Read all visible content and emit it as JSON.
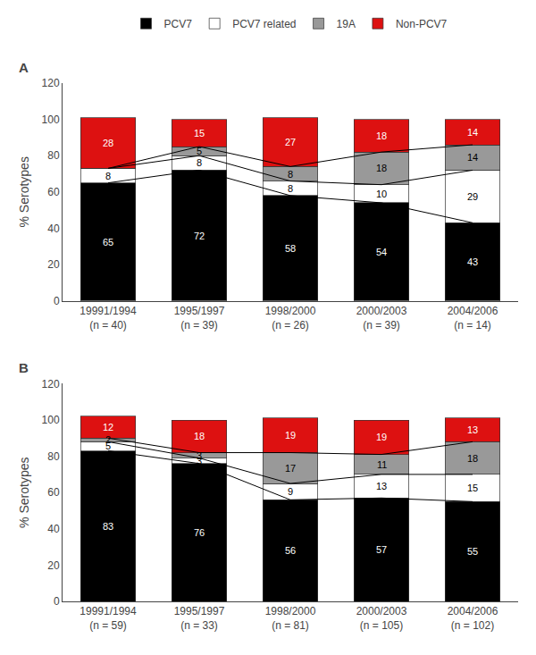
{
  "chart_data": [
    {
      "type": "bar",
      "stacked": true,
      "title": "A",
      "ylabel": "% Serotypes",
      "categories": [
        "19991/1994\n(n = 40)",
        "1995/1997\n(n = 39)",
        "1998/2000\n(n = 26)",
        "2000/2003\n(n = 39)",
        "2004/2006\n(n = 14)"
      ],
      "series": [
        {
          "name": "PCV7",
          "color": "#000000",
          "values": [
            65,
            72,
            58,
            54,
            43
          ]
        },
        {
          "name": "PCV7 related",
          "color": "#ffffff",
          "values": [
            8,
            8,
            8,
            10,
            29
          ]
        },
        {
          "name": "19A",
          "color": "#999999",
          "values": [
            0,
            5,
            8,
            18,
            14
          ]
        },
        {
          "name": "Non-PCV7",
          "color": "#dd1111",
          "values": [
            28,
            15,
            27,
            18,
            14
          ]
        }
      ],
      "ylim": [
        0,
        120
      ],
      "yticks": [
        0,
        20,
        40,
        60,
        80,
        100,
        120
      ],
      "data_labels": true,
      "grid": false,
      "legend": "top"
    },
    {
      "type": "bar",
      "stacked": true,
      "title": "B",
      "ylabel": "% Serotypes",
      "categories": [
        "19991/1994\n(n = 59)",
        "1995/1997\n(n = 33)",
        "1998/2000\n(n = 81)",
        "2000/2003\n(n = 105)",
        "2004/2006\n(n = 102)"
      ],
      "series": [
        {
          "name": "PCV7",
          "color": "#000000",
          "values": [
            83,
            76,
            56,
            57,
            55
          ]
        },
        {
          "name": "PCV7 related",
          "color": "#ffffff",
          "values": [
            5,
            3,
            9,
            13,
            15
          ]
        },
        {
          "name": "19A",
          "color": "#999999",
          "values": [
            2,
            3,
            17,
            11,
            18
          ]
        },
        {
          "name": "Non-PCV7",
          "color": "#dd1111",
          "values": [
            12,
            18,
            19,
            19,
            13
          ]
        }
      ],
      "ylim": [
        0,
        120
      ],
      "yticks": [
        0,
        20,
        40,
        60,
        80,
        100,
        120
      ],
      "data_labels": true,
      "grid": false
    }
  ]
}
